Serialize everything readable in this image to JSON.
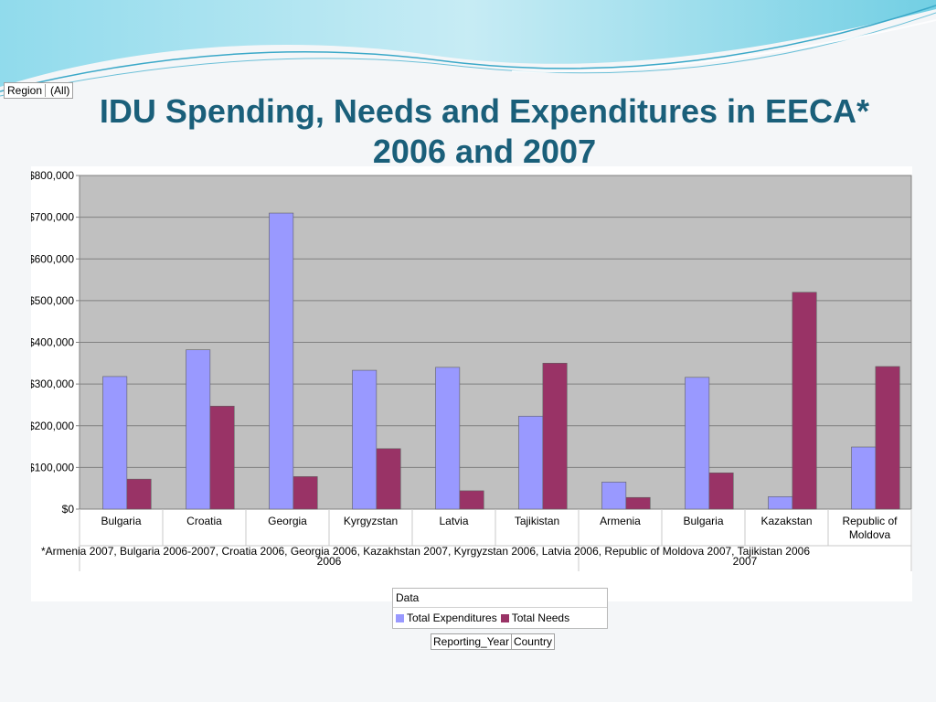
{
  "page": {
    "region_field": {
      "label": "Region",
      "value": "(All)"
    },
    "title_line1": "IDU Spending, Needs and Expenditures in EECA*",
    "title_line2": "2006 and 2007",
    "footnote": "*Armenia 2007, Bulgaria 2006-2007, Croatia 2006, Georgia 2006, Kazakhstan 2007, Kyrgyzstan 2006, Latvia 2006, Republic of Moldova 2007, Tajikistan 2006",
    "legend": {
      "header": "Data",
      "items": [
        {
          "label": "Total Expenditures",
          "color": "#9999ff"
        },
        {
          "label": "Total Needs",
          "color": "#993366"
        }
      ]
    },
    "row_fields": [
      "Reporting_Year",
      "Country"
    ],
    "colors": {
      "title": "#1a5f7a",
      "plot_bg": "#c0c0c0",
      "wave": "#5bc8e0"
    }
  },
  "chart_data": {
    "type": "bar",
    "title": "IDU Spending, Needs and Expenditures in EECA* 2006 and 2007",
    "ylim": [
      0,
      800000
    ],
    "y_ticks": [
      "$0",
      "$100,000",
      "$200,000",
      "$300,000",
      "$400,000",
      "$500,000",
      "$600,000",
      "$700,000",
      "$800,000"
    ],
    "categories": [
      "Bulgaria",
      "Croatia",
      "Georgia",
      "Kyrgyzstan",
      "Latvia",
      "Tajikistan",
      "Armenia",
      "Bulgaria",
      "Kazakstan",
      "Republic of Moldova"
    ],
    "groups": [
      {
        "label": "2006",
        "count": 6
      },
      {
        "label": "2007",
        "count": 4
      }
    ],
    "series": [
      {
        "name": "Total Expenditures",
        "color": "#9999ff",
        "values": [
          318000,
          382000,
          710000,
          333000,
          340000,
          223000,
          65000,
          316000,
          30000,
          149000
        ]
      },
      {
        "name": "Total Needs",
        "color": "#993366",
        "values": [
          72000,
          247000,
          78000,
          145000,
          44000,
          350000,
          28000,
          87000,
          520000,
          342000
        ]
      }
    ],
    "grid": true
  }
}
